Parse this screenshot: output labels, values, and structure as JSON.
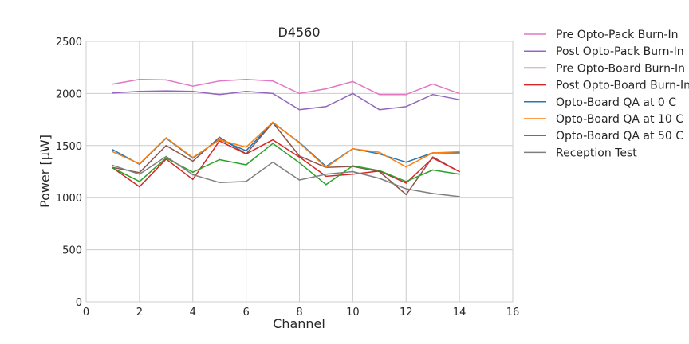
{
  "chart_data": {
    "type": "line",
    "title": "D4560",
    "xlabel": "Channel",
    "ylabel": "Power [μW]",
    "xlim": [
      0,
      16
    ],
    "ylim": [
      0,
      2500
    ],
    "xticks": [
      "0",
      "2",
      "4",
      "6",
      "8",
      "10",
      "12",
      "14",
      "16"
    ],
    "yticks": [
      "0",
      "500",
      "1000",
      "1500",
      "2000",
      "2500"
    ],
    "grid": true,
    "legend_position": "outside-right",
    "x": [
      1,
      2,
      3,
      4,
      5,
      6,
      7,
      8,
      9,
      10,
      11,
      12,
      13,
      14
    ],
    "series": [
      {
        "name": "Pre Opto-Pack Burn-In",
        "color": "#e377c2",
        "values": [
          2090,
          2135,
          2130,
          2070,
          2120,
          2135,
          2120,
          2000,
          2045,
          2115,
          1990,
          1990,
          2090,
          2000
        ]
      },
      {
        "name": "Post Opto-Pack Burn-In",
        "color": "#9467bd",
        "values": [
          2005,
          2020,
          2025,
          2020,
          1990,
          2020,
          2000,
          1845,
          1875,
          2000,
          1845,
          1875,
          1990,
          1940
        ]
      },
      {
        "name": "Pre Opto-Board Burn-In",
        "color": "#8c564b",
        "values": [
          1290,
          1240,
          1500,
          1350,
          1580,
          1420,
          1720,
          1400,
          1290,
          1300,
          1250,
          1030,
          1390,
          1250
        ]
      },
      {
        "name": "Post Opto-Board Burn-In",
        "color": "#d62728",
        "values": [
          1285,
          1105,
          1370,
          1175,
          1545,
          1420,
          1555,
          1390,
          1205,
          1225,
          1255,
          1140,
          1380,
          1250
        ]
      },
      {
        "name": "Opto-Board QA at 0 C",
        "color": "#1f77b4",
        "values": [
          1460,
          1320,
          1570,
          1380,
          1560,
          1450,
          1720,
          1530,
          1300,
          1470,
          1420,
          1340,
          1430,
          1430
        ]
      },
      {
        "name": "Opto-Board QA at 10 C",
        "color": "#ff7f0e",
        "values": [
          1440,
          1325,
          1575,
          1385,
          1555,
          1485,
          1725,
          1525,
          1290,
          1470,
          1435,
          1295,
          1430,
          1440
        ]
      },
      {
        "name": "Opto-Board QA at 50 C",
        "color": "#2ca02c",
        "values": [
          1285,
          1155,
          1380,
          1245,
          1365,
          1315,
          1520,
          1335,
          1125,
          1305,
          1260,
          1155,
          1265,
          1225
        ]
      },
      {
        "name": "Reception Test",
        "color": "#7f7f7f",
        "values": [
          1310,
          1225,
          1395,
          1220,
          1145,
          1155,
          1340,
          1170,
          1225,
          1250,
          1185,
          1085,
          1040,
          1010
        ]
      }
    ]
  }
}
